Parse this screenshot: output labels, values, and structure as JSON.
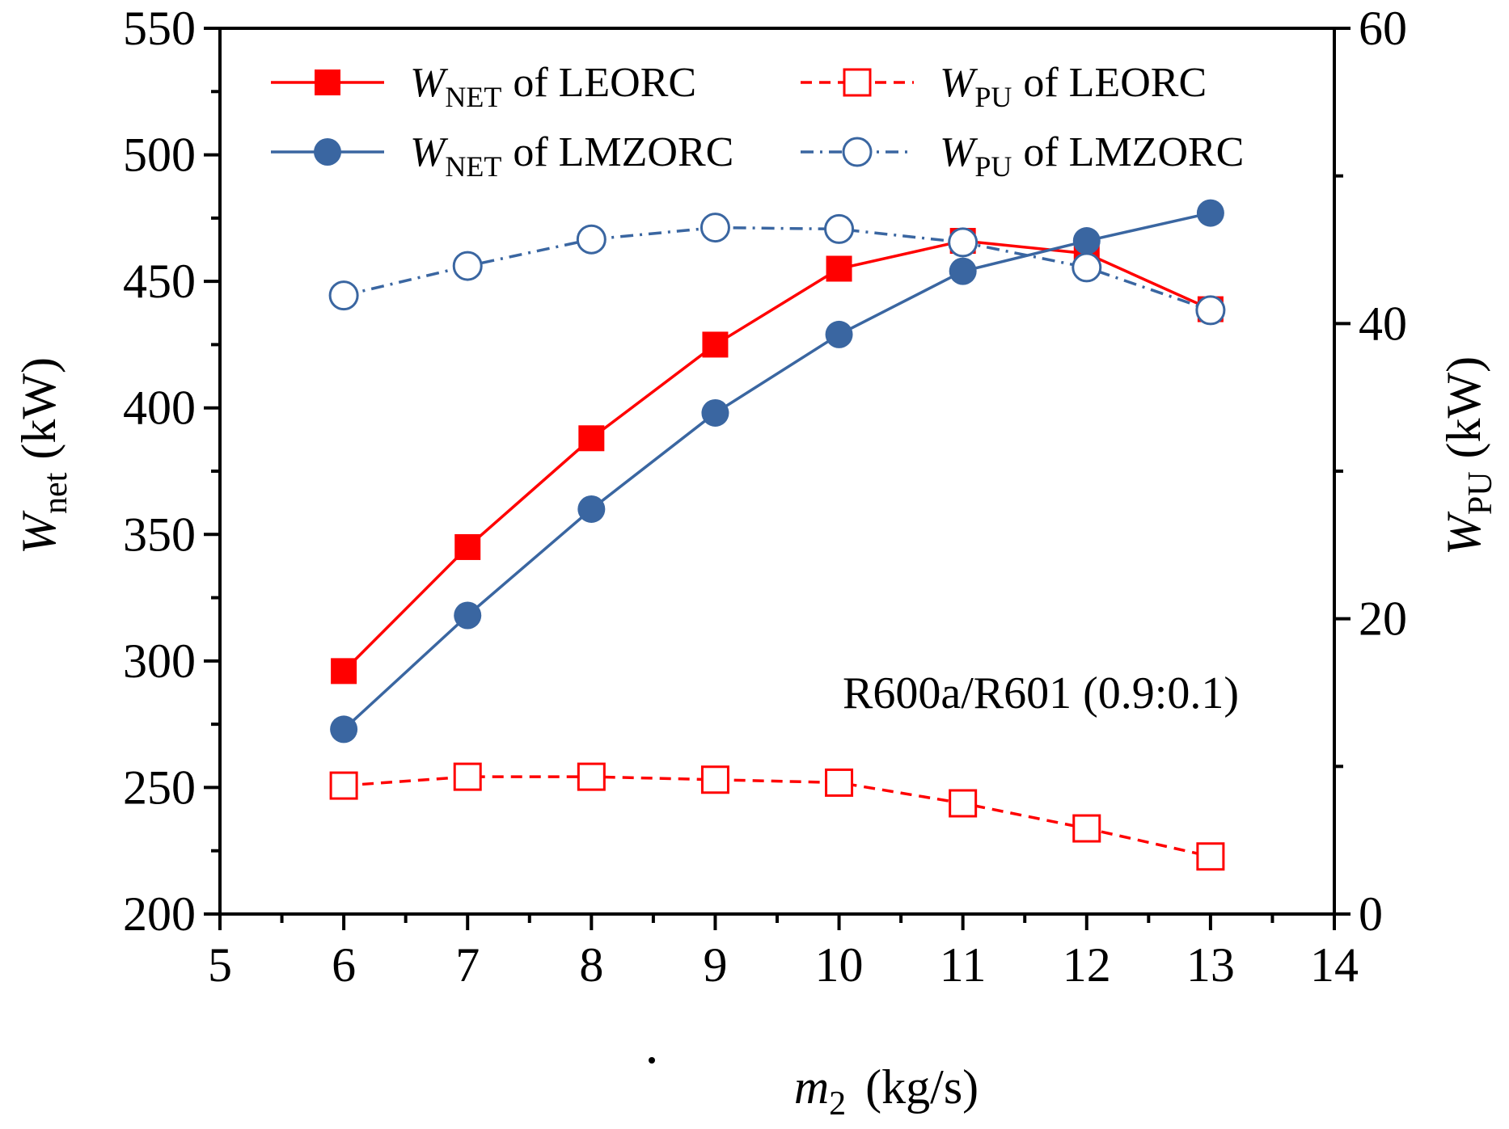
{
  "chart_data": {
    "type": "line",
    "annotation": "R600a/R601 (0.9:0.1)",
    "x_axis": {
      "label_symbol": "m",
      "label_subscript": "2",
      "label_units": "(kg/s)",
      "range": [
        5,
        14
      ],
      "ticks": [
        "5",
        "6",
        "7",
        "8",
        "9",
        "10",
        "11",
        "12",
        "13",
        "14"
      ]
    },
    "y_left": {
      "label_symbol": "W",
      "label_subscript": "net",
      "label_units": "(kW)",
      "range": [
        200,
        550
      ],
      "ticks": [
        "200",
        "250",
        "300",
        "350",
        "400",
        "450",
        "500",
        "550"
      ]
    },
    "y_right": {
      "label_symbol": "W",
      "label_subscript": "PU",
      "label_units": "(kW)",
      "range": [
        0,
        60
      ],
      "ticks": [
        "0",
        "20",
        "40",
        "60"
      ]
    },
    "x": [
      6,
      7,
      8,
      9,
      10,
      11,
      12,
      13
    ],
    "series": [
      {
        "symbol": "W",
        "subscript": "NET",
        "suffix": "of LEORC",
        "axis": "left",
        "color": "#ff0000",
        "dash": "solid",
        "marker": "square",
        "filled": true,
        "values": [
          296,
          345,
          388,
          425,
          455,
          466,
          461,
          439
        ]
      },
      {
        "symbol": "W",
        "subscript": "PU",
        "suffix": "of LEORC",
        "axis": "right",
        "color": "#ff0000",
        "dash": "dashed",
        "marker": "square",
        "filled": false,
        "values": [
          8.7,
          9.3,
          9.3,
          9.1,
          8.9,
          7.5,
          5.8,
          3.9
        ]
      },
      {
        "symbol": "W",
        "subscript": "NET",
        "suffix": "of LMZORC",
        "axis": "left",
        "color": "#3a66a1",
        "dash": "solid",
        "marker": "circle",
        "filled": true,
        "values": [
          273,
          318,
          360,
          398,
          429,
          454,
          466,
          477
        ]
      },
      {
        "symbol": "W",
        "subscript": "PU",
        "suffix": "of LMZORC",
        "axis": "right",
        "color": "#3a66a1",
        "dash": "dashdot",
        "marker": "circle",
        "filled": false,
        "values": [
          41.9,
          43.9,
          45.7,
          46.5,
          46.4,
          45.5,
          43.8,
          40.9
        ]
      }
    ],
    "legend_position": "top"
  }
}
